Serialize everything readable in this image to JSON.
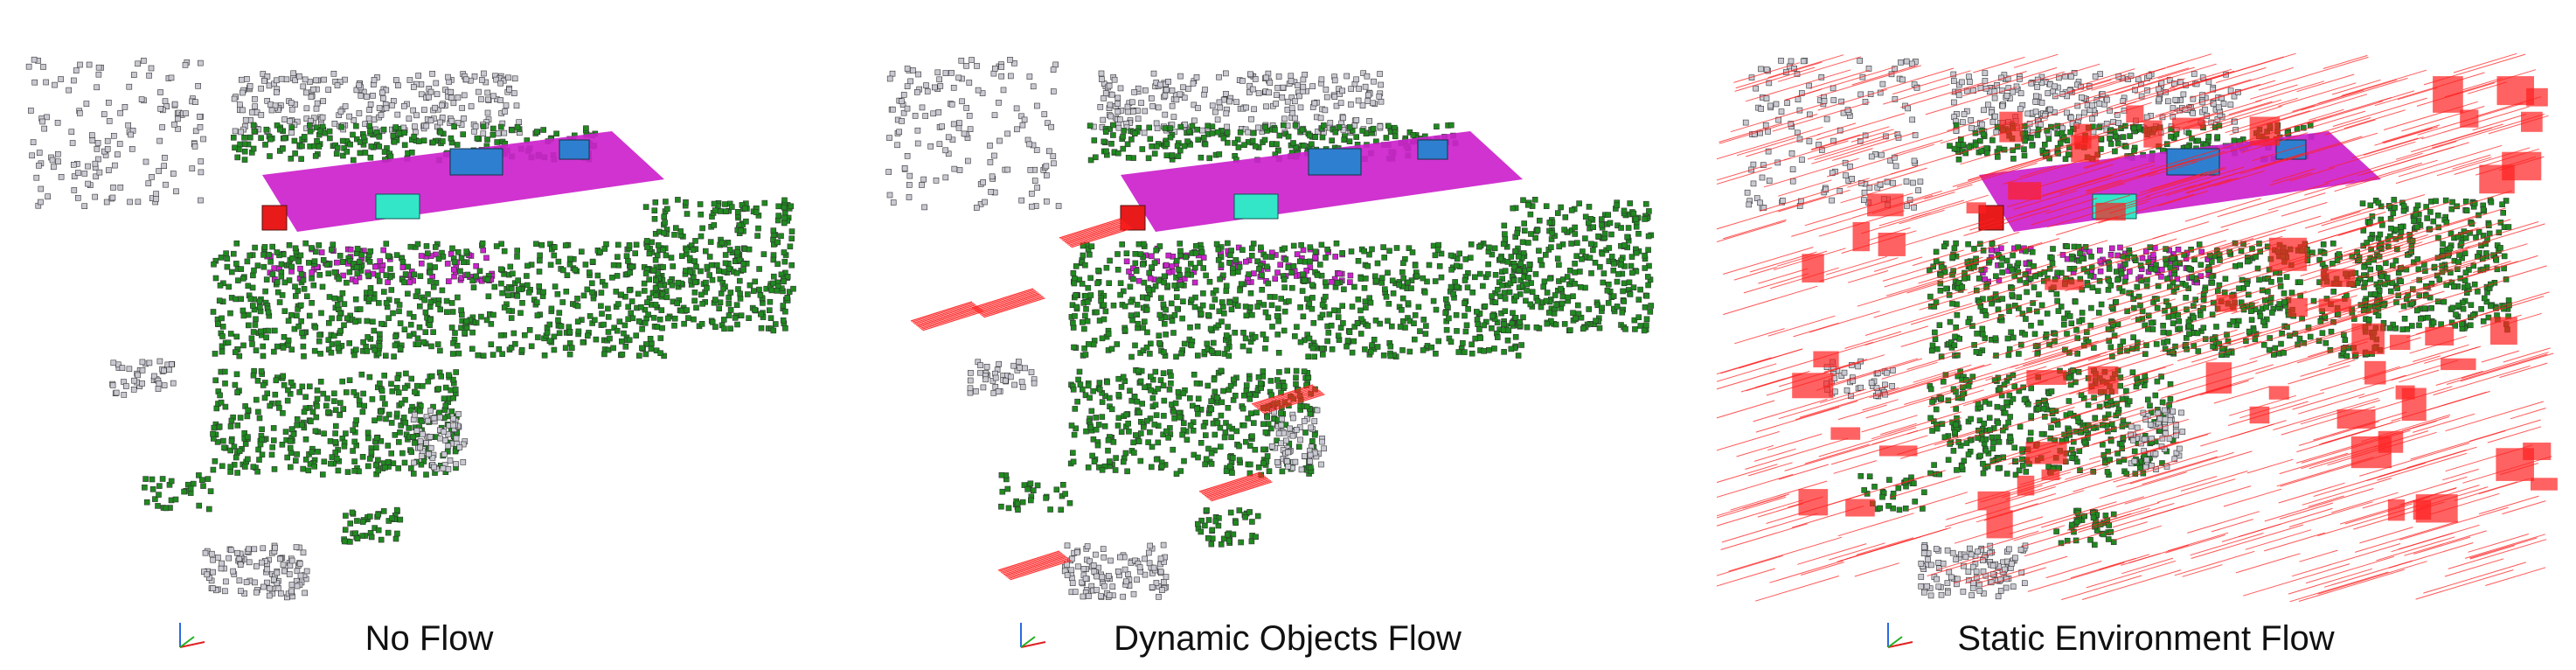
{
  "panels": [
    {
      "caption": "No Flow",
      "flow": "none"
    },
    {
      "caption": "Dynamic Objects Flow",
      "flow": "dynamic"
    },
    {
      "caption": "Static Environment Flow",
      "flow": "static"
    }
  ],
  "colors": {
    "vegetation": "#1f8a1f",
    "building": "#c9c9d2",
    "road": "#cc22cc",
    "car": "#2f7fd0",
    "truck": "#33e6c8",
    "dynamic": "#e81a1a",
    "flow": "#ff2020",
    "background": "#ffffff"
  }
}
